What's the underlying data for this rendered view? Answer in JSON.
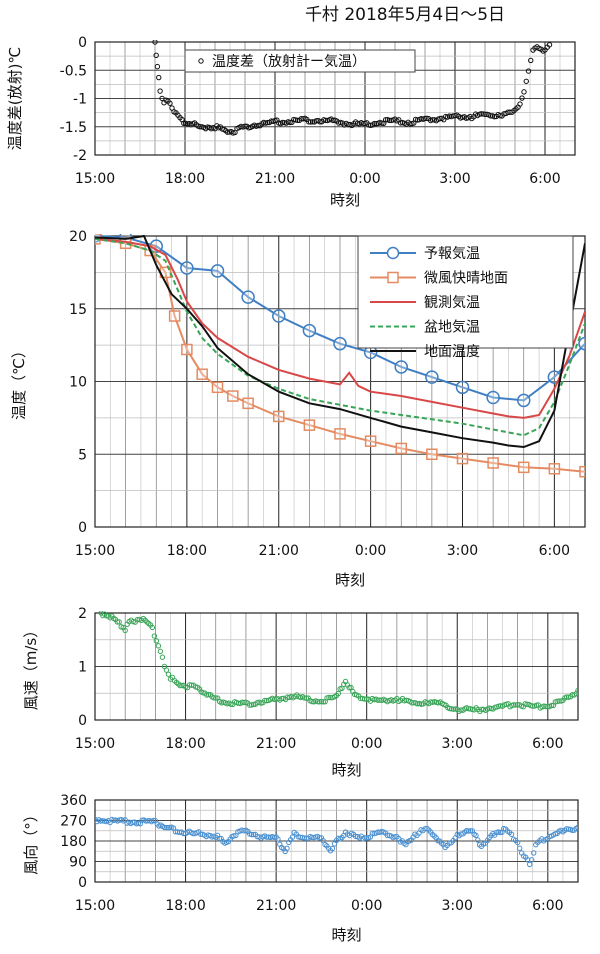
{
  "page_title": "千村 2018年5月4日～5日",
  "x_ticks": [
    "15:00",
    "18:00",
    "21:00",
    "0:00",
    "3:00",
    "6:00"
  ],
  "chart_data": [
    {
      "type": "scatter",
      "xlabel": "時刻",
      "ylabel": "温度差(放射)℃",
      "ylim": [
        -2,
        0
      ],
      "yticks": [
        "0",
        "-0.5",
        "-1",
        "-1.5",
        "-2"
      ],
      "grid": true,
      "legend": "top-left",
      "x_range_hours": [
        15,
        31
      ],
      "series": [
        {
          "name": "温度差（放射計ー気温）",
          "color": "#111111",
          "points": [
            [
              17.0,
              0.0
            ],
            [
              17.08,
              -0.4
            ],
            [
              17.17,
              -0.9
            ],
            [
              17.3,
              -1.05
            ],
            [
              17.5,
              -1.1
            ],
            [
              17.7,
              -1.25
            ],
            [
              17.9,
              -1.4
            ],
            [
              18.2,
              -1.45
            ],
            [
              18.5,
              -1.5
            ],
            [
              19.0,
              -1.5
            ],
            [
              19.3,
              -1.55
            ],
            [
              19.6,
              -1.58
            ],
            [
              20.0,
              -1.5
            ],
            [
              20.5,
              -1.45
            ],
            [
              21.0,
              -1.42
            ],
            [
              21.5,
              -1.4
            ],
            [
              22.0,
              -1.38
            ],
            [
              22.5,
              -1.38
            ],
            [
              23.0,
              -1.4
            ],
            [
              23.5,
              -1.45
            ],
            [
              24.0,
              -1.45
            ],
            [
              24.5,
              -1.42
            ],
            [
              25.0,
              -1.4
            ],
            [
              25.5,
              -1.42
            ],
            [
              26.0,
              -1.38
            ],
            [
              26.5,
              -1.35
            ],
            [
              27.0,
              -1.32
            ],
            [
              27.5,
              -1.32
            ],
            [
              28.0,
              -1.3
            ],
            [
              28.5,
              -1.28
            ],
            [
              28.9,
              -1.25
            ],
            [
              29.1,
              -1.15
            ],
            [
              29.3,
              -0.9
            ],
            [
              29.45,
              -0.5
            ],
            [
              29.6,
              -0.15
            ],
            [
              29.8,
              -0.1
            ],
            [
              30.0,
              -0.15
            ],
            [
              30.15,
              -0.05
            ]
          ]
        }
      ]
    },
    {
      "type": "line",
      "xlabel": "時刻",
      "ylabel": "温度（℃）",
      "ylim": [
        0,
        20
      ],
      "yticks": [
        "0",
        "5",
        "10",
        "15",
        "20"
      ],
      "grid": true,
      "legend": "top-right",
      "x_range_hours": [
        15,
        31
      ],
      "series": [
        {
          "name": "予報気温",
          "color": "#3f7fc4",
          "marker": "circle",
          "dash": "solid",
          "points": [
            [
              15,
              20
            ],
            [
              16,
              19.9
            ],
            [
              17,
              19.3
            ],
            [
              18,
              17.8
            ],
            [
              19,
              17.6
            ],
            [
              20,
              15.8
            ],
            [
              21,
              14.5
            ],
            [
              22,
              13.5
            ],
            [
              23,
              12.6
            ],
            [
              24,
              12.0
            ],
            [
              25,
              11.0
            ],
            [
              26,
              10.3
            ],
            [
              27,
              9.6
            ],
            [
              28,
              8.9
            ],
            [
              29,
              8.7
            ],
            [
              30,
              10.3
            ],
            [
              31,
              12.6
            ]
          ]
        },
        {
          "name": "微風快晴地面",
          "color": "#e58b62",
          "marker": "square",
          "dash": "solid",
          "points": [
            [
              15,
              19.8
            ],
            [
              16,
              19.5
            ],
            [
              16.8,
              19.0
            ],
            [
              17.3,
              17.5
            ],
            [
              17.6,
              14.5
            ],
            [
              18,
              12.2
            ],
            [
              18.5,
              10.5
            ],
            [
              19,
              9.6
            ],
            [
              19.5,
              9.0
            ],
            [
              20,
              8.5
            ],
            [
              21,
              7.6
            ],
            [
              22,
              7.0
            ],
            [
              23,
              6.4
            ],
            [
              24,
              5.9
            ],
            [
              25,
              5.4
            ],
            [
              26,
              5.0
            ],
            [
              27,
              4.7
            ],
            [
              28,
              4.4
            ],
            [
              29,
              4.1
            ],
            [
              30,
              4.0
            ],
            [
              31,
              3.8
            ]
          ]
        },
        {
          "name": "観測気温",
          "color": "#d94848",
          "marker": "none",
          "dash": "solid",
          "points": [
            [
              15,
              19.8
            ],
            [
              16,
              19.6
            ],
            [
              16.8,
              19.3
            ],
            [
              17.3,
              18.7
            ],
            [
              17.7,
              17.0
            ],
            [
              18,
              15.5
            ],
            [
              18.5,
              14.0
            ],
            [
              19,
              13.0
            ],
            [
              20,
              11.7
            ],
            [
              21,
              10.8
            ],
            [
              22,
              10.2
            ],
            [
              23,
              9.8
            ],
            [
              23.3,
              10.6
            ],
            [
              23.6,
              9.7
            ],
            [
              24,
              9.3
            ],
            [
              25,
              9.0
            ],
            [
              26,
              8.6
            ],
            [
              27,
              8.2
            ],
            [
              28,
              7.8
            ],
            [
              28.5,
              7.6
            ],
            [
              29,
              7.5
            ],
            [
              29.5,
              7.7
            ],
            [
              30,
              9.5
            ],
            [
              30.5,
              11.8
            ],
            [
              31,
              14.8
            ]
          ]
        },
        {
          "name": "盆地気温",
          "color": "#3aa558",
          "marker": "none",
          "dash": "dashed",
          "points": [
            [
              15,
              19.8
            ],
            [
              16,
              19.5
            ],
            [
              16.8,
              19.0
            ],
            [
              17.3,
              18.3
            ],
            [
              17.7,
              16.3
            ],
            [
              18,
              14.8
            ],
            [
              18.5,
              13.0
            ],
            [
              19,
              11.9
            ],
            [
              20,
              10.4
            ],
            [
              21,
              9.5
            ],
            [
              22,
              8.8
            ],
            [
              23,
              8.4
            ],
            [
              24,
              8.0
            ],
            [
              25,
              7.7
            ],
            [
              26,
              7.4
            ],
            [
              27,
              7.1
            ],
            [
              28,
              6.7
            ],
            [
              28.5,
              6.5
            ],
            [
              29,
              6.3
            ],
            [
              29.5,
              6.8
            ],
            [
              30,
              8.6
            ],
            [
              30.5,
              11.2
            ],
            [
              31,
              14.0
            ]
          ]
        },
        {
          "name": "地面温度",
          "color": "#111111",
          "marker": "none",
          "dash": "solid",
          "points": [
            [
              15,
              19.9
            ],
            [
              16,
              19.8
            ],
            [
              16.6,
              20.0
            ],
            [
              17,
              18.0
            ],
            [
              17.5,
              16.0
            ],
            [
              18,
              15.0
            ],
            [
              18.5,
              13.8
            ],
            [
              19,
              12.3
            ],
            [
              20,
              10.5
            ],
            [
              21,
              9.3
            ],
            [
              22,
              8.5
            ],
            [
              23,
              8.1
            ],
            [
              24,
              7.5
            ],
            [
              25,
              6.9
            ],
            [
              26,
              6.5
            ],
            [
              27,
              6.1
            ],
            [
              28,
              5.8
            ],
            [
              28.5,
              5.6
            ],
            [
              29,
              5.5
            ],
            [
              29.5,
              5.9
            ],
            [
              30,
              8.0
            ],
            [
              30.5,
              13.8
            ],
            [
              31,
              19.5
            ]
          ]
        }
      ]
    },
    {
      "type": "scatter",
      "xlabel": "時刻",
      "ylabel": "風速（m/s）",
      "ylim": [
        0,
        2
      ],
      "yticks": [
        "2",
        "1",
        "0"
      ],
      "grid": true,
      "x_range_hours": [
        15,
        31
      ],
      "series": [
        {
          "color": "#3aa558",
          "points": [
            [
              15.2,
              2.0
            ],
            [
              15.5,
              1.95
            ],
            [
              15.8,
              1.8
            ],
            [
              16.0,
              1.7
            ],
            [
              16.2,
              1.85
            ],
            [
              16.6,
              1.9
            ],
            [
              16.9,
              1.7
            ],
            [
              17.1,
              1.4
            ],
            [
              17.3,
              1.0
            ],
            [
              17.5,
              0.8
            ],
            [
              17.7,
              0.7
            ],
            [
              18.0,
              0.65
            ],
            [
              18.4,
              0.6
            ],
            [
              18.7,
              0.5
            ],
            [
              19.0,
              0.38
            ],
            [
              19.5,
              0.32
            ],
            [
              20.0,
              0.3
            ],
            [
              20.5,
              0.35
            ],
            [
              21.0,
              0.38
            ],
            [
              21.5,
              0.45
            ],
            [
              22.0,
              0.4
            ],
            [
              22.5,
              0.35
            ],
            [
              23.0,
              0.42
            ],
            [
              23.3,
              0.75
            ],
            [
              23.6,
              0.45
            ],
            [
              24.0,
              0.4
            ],
            [
              24.5,
              0.35
            ],
            [
              25.0,
              0.4
            ],
            [
              25.5,
              0.3
            ],
            [
              26.0,
              0.35
            ],
            [
              26.5,
              0.3
            ],
            [
              27.0,
              0.2
            ],
            [
              27.5,
              0.18
            ],
            [
              28.0,
              0.22
            ],
            [
              28.5,
              0.25
            ],
            [
              29.0,
              0.3
            ],
            [
              29.5,
              0.25
            ],
            [
              30.0,
              0.28
            ],
            [
              30.5,
              0.35
            ],
            [
              31.0,
              0.55
            ]
          ]
        }
      ]
    },
    {
      "type": "scatter",
      "xlabel": "時刻",
      "ylabel": "風向（°）",
      "ylim": [
        0,
        360
      ],
      "yticks": [
        "360",
        "270",
        "180",
        "90",
        "0"
      ],
      "grid": true,
      "x_range_hours": [
        15,
        31
      ],
      "series": [
        {
          "color": "#4a90d0",
          "points": [
            [
              15.0,
              275
            ],
            [
              15.5,
              270
            ],
            [
              16.0,
              265
            ],
            [
              16.5,
              262
            ],
            [
              17.0,
              265
            ],
            [
              17.3,
              240
            ],
            [
              17.6,
              230
            ],
            [
              18.0,
              215
            ],
            [
              18.5,
              210
            ],
            [
              19.0,
              205
            ],
            [
              19.3,
              170
            ],
            [
              19.6,
              210
            ],
            [
              20.0,
              225
            ],
            [
              20.5,
              200
            ],
            [
              21.0,
              190
            ],
            [
              21.3,
              140
            ],
            [
              21.6,
              210
            ],
            [
              22.0,
              200
            ],
            [
              22.5,
              190
            ],
            [
              22.8,
              140
            ],
            [
              23.0,
              180
            ],
            [
              23.3,
              220
            ],
            [
              23.7,
              190
            ],
            [
              24.0,
              200
            ],
            [
              24.5,
              215
            ],
            [
              25.0,
              200
            ],
            [
              25.3,
              160
            ],
            [
              25.6,
              210
            ],
            [
              26.0,
              230
            ],
            [
              26.3,
              200
            ],
            [
              26.6,
              150
            ],
            [
              27.0,
              210
            ],
            [
              27.5,
              220
            ],
            [
              27.8,
              160
            ],
            [
              28.0,
              180
            ],
            [
              28.3,
              220
            ],
            [
              28.6,
              230
            ],
            [
              29.0,
              180
            ],
            [
              29.2,
              110
            ],
            [
              29.4,
              80
            ],
            [
              29.6,
              160
            ],
            [
              30.0,
              200
            ],
            [
              30.5,
              220
            ],
            [
              31.0,
              240
            ]
          ]
        }
      ]
    }
  ]
}
